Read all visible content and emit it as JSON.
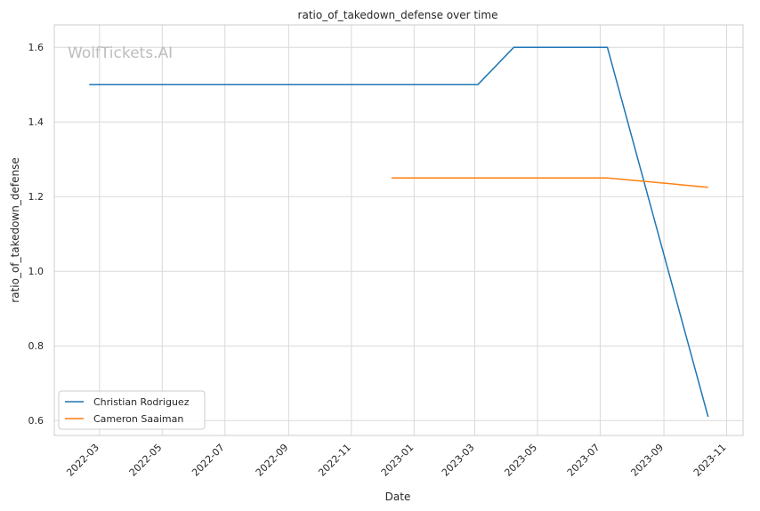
{
  "chart_data": {
    "type": "line",
    "title": "ratio_of_takedown_defense over time",
    "xlabel": "Date",
    "ylabel": "ratio_of_takedown_defense",
    "watermark": "WolfTickets.AI",
    "xlim": [
      "2022-01-16",
      "2023-11-17"
    ],
    "ylim": [
      0.56,
      1.66
    ],
    "x_ticks": [
      "2022-03-01",
      "2022-05-01",
      "2022-07-01",
      "2022-09-01",
      "2022-11-01",
      "2023-01-01",
      "2023-03-01",
      "2023-05-01",
      "2023-07-01",
      "2023-09-01",
      "2023-11-01"
    ],
    "x_tick_labels": [
      "2022-03",
      "2022-05",
      "2022-07",
      "2022-09",
      "2022-11",
      "2023-01",
      "2023-03",
      "2023-05",
      "2023-07",
      "2023-09",
      "2023-11"
    ],
    "y_ticks": [
      0.6,
      0.8,
      1.0,
      1.2,
      1.4,
      1.6
    ],
    "y_tick_labels": [
      "0.6",
      "0.8",
      "1.0",
      "1.2",
      "1.4",
      "1.6"
    ],
    "grid": true,
    "legend_position": "lower-left",
    "series": [
      {
        "name": "Christian Rodriguez",
        "color": "#1f77b4",
        "x": [
          "2022-02-19",
          "2023-03-04",
          "2023-04-08",
          "2023-07-08",
          "2023-10-14"
        ],
        "y": [
          1.5,
          1.5,
          1.6,
          1.6,
          0.61
        ]
      },
      {
        "name": "Cameron Saaiman",
        "color": "#ff7f0e",
        "x": [
          "2022-12-10",
          "2023-07-08",
          "2023-10-14"
        ],
        "y": [
          1.25,
          1.25,
          1.225
        ]
      }
    ]
  }
}
